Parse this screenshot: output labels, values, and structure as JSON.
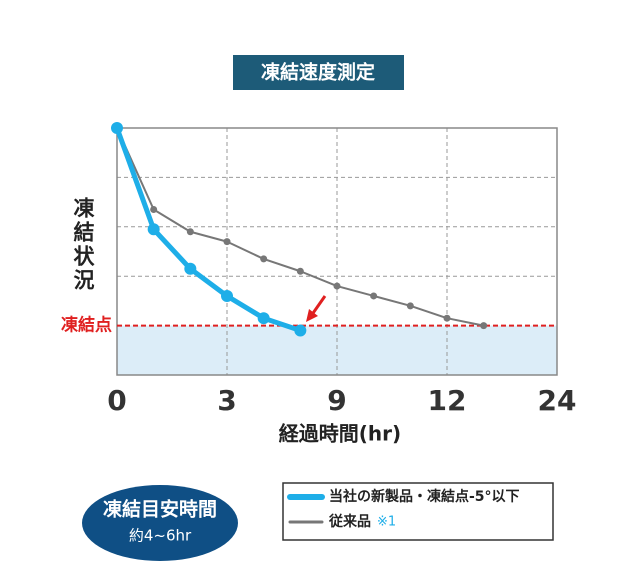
{
  "chart_data": {
    "type": "line",
    "title": "凍結速度測定",
    "y_label": "凍結状況",
    "x_label": "経過時間(hr)",
    "xlim": [
      0,
      24
    ],
    "xticks": [
      0,
      3,
      9,
      12,
      24
    ],
    "ylim": [
      0,
      100
    ],
    "ygrid": [
      40,
      60,
      80
    ],
    "freeze_point": 20,
    "freeze_label": "凍結点",
    "series": [
      {
        "name": "当社の新製品・凍結点-5°以下",
        "color": "#1eaee8",
        "x": [
          0,
          1,
          2,
          3,
          5,
          7
        ],
        "values": [
          100,
          59,
          43,
          32,
          23,
          18
        ]
      },
      {
        "name": "従来品",
        "note": "※1",
        "color": "#777777",
        "x": [
          0,
          1,
          2,
          3,
          5,
          7,
          9,
          10,
          11,
          12,
          16
        ],
        "values": [
          100,
          67,
          58,
          54,
          47,
          42,
          36,
          32,
          28,
          23,
          20
        ]
      }
    ],
    "badge": {
      "title": "凍結目安時間",
      "subtitle": "約4~6hr"
    }
  }
}
